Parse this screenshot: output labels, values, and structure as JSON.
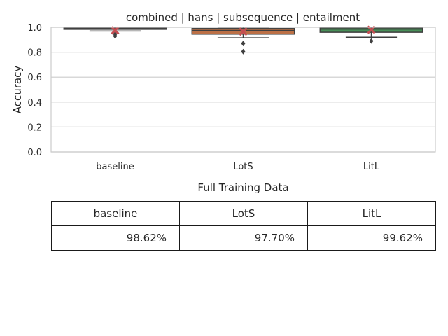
{
  "chart_data": {
    "type": "box",
    "title": "combined | hans | subsequence | entailment",
    "xlabel": "",
    "ylabel": "Accuracy",
    "ylim": [
      0,
      1.0
    ],
    "yticks": [
      "0.0",
      "0.2",
      "0.4",
      "0.6",
      "0.8",
      "1.0"
    ],
    "grid": true,
    "categories": [
      "baseline",
      "LotS",
      "LitL"
    ],
    "boxes": [
      {
        "name": "baseline",
        "color": "#4c72b0",
        "q1": 0.985,
        "median": 0.99,
        "q3": 0.995,
        "whisker_low": 0.97,
        "whisker_high": 1.0,
        "outliers": [
          0.93,
          0.945
        ],
        "mean": 0.975
      },
      {
        "name": "LotS",
        "color": "#dd8452",
        "q1": 0.945,
        "median": 0.975,
        "q3": 0.99,
        "whisker_low": 0.915,
        "whisker_high": 1.0,
        "outliers": [
          0.87,
          0.805
        ],
        "mean": 0.965
      },
      {
        "name": "LitL",
        "color": "#55a868",
        "q1": 0.96,
        "median": 0.985,
        "q3": 0.995,
        "whisker_low": 0.92,
        "whisker_high": 1.0,
        "outliers": [
          0.89
        ],
        "mean": 0.98
      }
    ],
    "mean_marker_color": "#c44e52"
  },
  "table": {
    "caption": "Full Training Data",
    "columns": [
      "baseline",
      "LotS",
      "LitL"
    ],
    "values": [
      "98.62%",
      "97.70%",
      "99.62%"
    ]
  }
}
